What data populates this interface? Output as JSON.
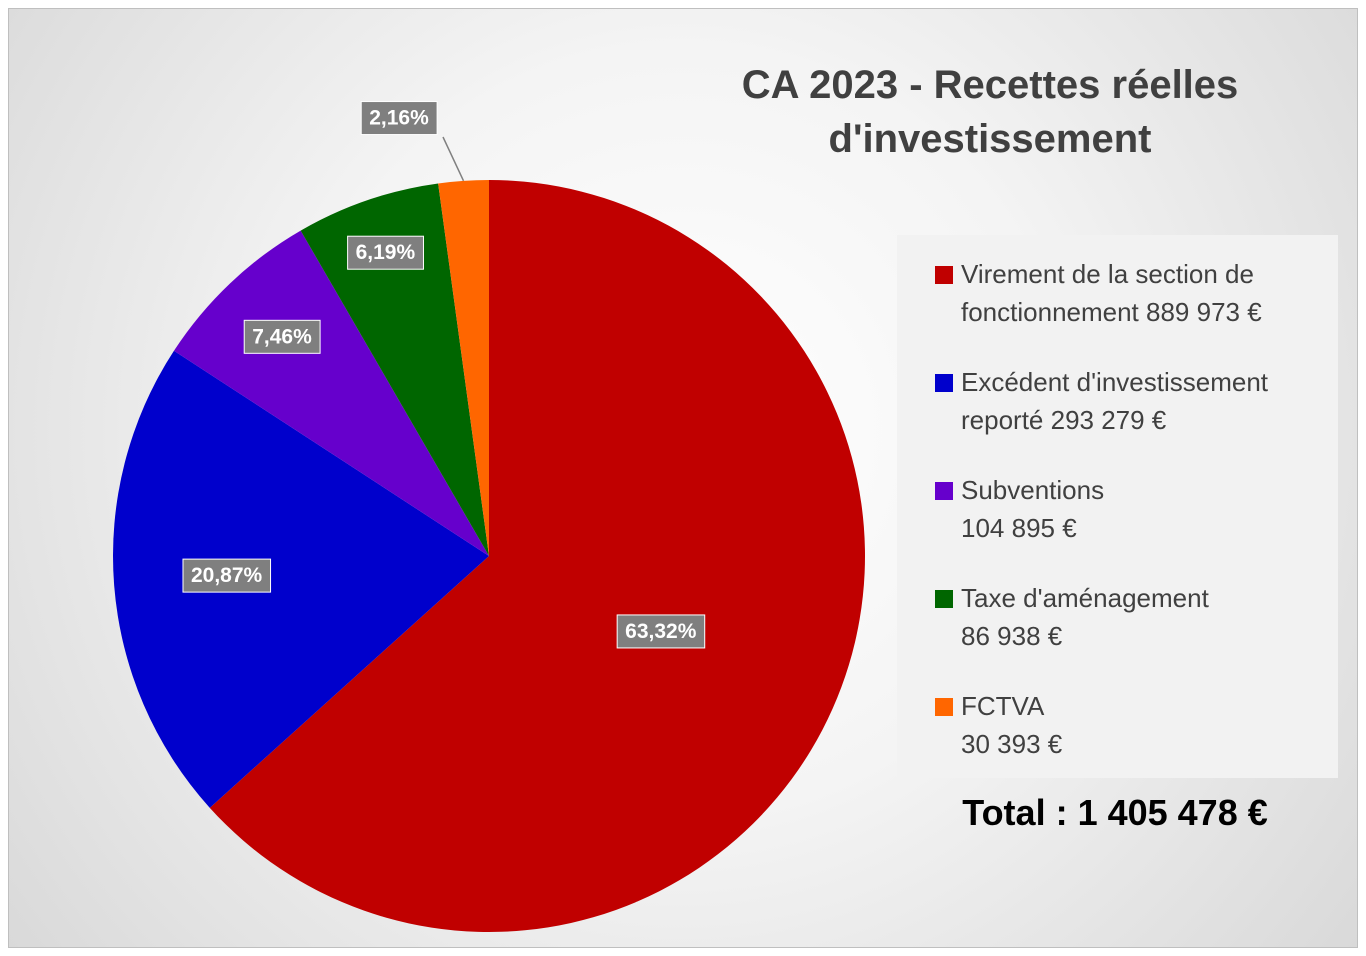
{
  "chart_data": {
    "type": "pie",
    "title": "CA 2023 - Recettes réelles d'investissement",
    "categories": [
      "Virement de la section de\nfonctionnement 889 973 €",
      "Excédent d'investissement\nreporté 293 279 €",
      "Subventions\n104 895 €",
      "Taxe d'aménagement\n86 938 €",
      "FCTVA\n30 393 €"
    ],
    "values": [
      63.32,
      20.87,
      7.46,
      6.19,
      2.16
    ],
    "value_labels": [
      "63,32%",
      "20,87%",
      "7,46%",
      "6,19%",
      "2,16%"
    ],
    "colors": [
      "#c00000",
      "#0000cc",
      "#6600cc",
      "#006600",
      "#ff6600"
    ],
    "legend": "right",
    "annotations": [
      "Total : 1 405 478 €"
    ]
  }
}
